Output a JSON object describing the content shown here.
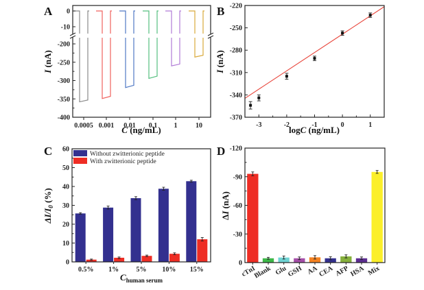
{
  "chart_data": [
    {
      "panel": "A",
      "type": "line",
      "xlabel": "C (ng/mL)",
      "ylabel": "I (nA)",
      "categories": [
        "0.0005",
        "0.001",
        "0.01",
        "0.1",
        "1",
        "10"
      ],
      "y_upper_ticks": [
        "0",
        "-10"
      ],
      "y_lower_ticks": [
        "-200",
        "-250",
        "-300",
        "-350",
        "-400"
      ],
      "y_break": [
        -15,
        -190
      ],
      "series": [
        {
          "name": "0.0005",
          "color": "#8a8a8a",
          "baseline": 0,
          "plateau_start": -358,
          "plateau_end": -353
        },
        {
          "name": "0.001",
          "color": "#f0625e",
          "baseline": 0,
          "plateau_start": -349,
          "plateau_end": -343
        },
        {
          "name": "0.01",
          "color": "#4f78c4",
          "baseline": 0,
          "plateau_start": -319,
          "plateau_end": -313
        },
        {
          "name": "0.1",
          "color": "#54bf7e",
          "baseline": 0,
          "plateau_start": -294,
          "plateau_end": -288
        },
        {
          "name": "1",
          "color": "#b07bd6",
          "baseline": 0,
          "plateau_start": -260,
          "plateau_end": -255
        },
        {
          "name": "10",
          "color": "#d9a93a",
          "baseline": 0,
          "plateau_start": -236,
          "plateau_end": -231
        }
      ]
    },
    {
      "panel": "B",
      "type": "scatter",
      "xlabel": "logC (ng/mL)",
      "ylabel": "I (nA)",
      "xlim": [
        -3.5,
        1.5
      ],
      "ylim": [
        -370,
        -220
      ],
      "x_ticks": [
        "-3",
        "-2",
        "-1",
        "0",
        "1"
      ],
      "y_ticks": [
        "-220",
        "-250",
        "-280",
        "-310",
        "-340",
        "-370"
      ],
      "points": [
        {
          "x": -3.3,
          "y": -354,
          "err": 5
        },
        {
          "x": -3,
          "y": -344,
          "err": 4
        },
        {
          "x": -2,
          "y": -315,
          "err": 4
        },
        {
          "x": -1,
          "y": -291,
          "err": 3
        },
        {
          "x": 0,
          "y": -257,
          "err": 3
        },
        {
          "x": 1,
          "y": -233,
          "err": 3
        }
      ],
      "fit_line": {
        "slope": 24.6,
        "intercept": -258.5,
        "color": "#e8443a"
      }
    },
    {
      "panel": "C",
      "type": "bar",
      "xlabel": "C",
      "xlabel_sub": "human serum",
      "ylabel": "ΔI/I",
      "ylabel_sub": "0",
      "ylabel_unit": " (%)",
      "ylim": [
        0,
        60
      ],
      "y_ticks": [
        "0",
        "10",
        "20",
        "30",
        "40",
        "50",
        "60"
      ],
      "categories": [
        "0.5%",
        "1%",
        "5%",
        "10%",
        "15%"
      ],
      "legend_position": "top-left",
      "series": [
        {
          "name": "Without zwitterionic peptide",
          "color": "#33308f",
          "values": [
            25.7,
            28.8,
            33.8,
            38.8,
            42.8
          ],
          "errors": [
            0.4,
            0.8,
            0.8,
            0.8,
            0.5
          ]
        },
        {
          "name": "With zwitterionic peptide",
          "color": "#ee2d24",
          "values": [
            1.2,
            2.2,
            3.2,
            4.3,
            12.0
          ],
          "errors": [
            0.3,
            0.4,
            0.4,
            0.5,
            0.9
          ]
        }
      ]
    },
    {
      "panel": "D",
      "type": "bar",
      "xlabel": "",
      "ylabel": "ΔI (nA)",
      "ylim": [
        0,
        -120
      ],
      "y_ticks": [
        "0",
        "-30",
        "-60",
        "-90",
        "-120"
      ],
      "categories": [
        "cTnI",
        "Blank",
        "Glu",
        "GSH",
        "AA",
        "CEA",
        "AFP",
        "HSA",
        "Mix"
      ],
      "values": [
        -93,
        -4.5,
        -5.3,
        -4.5,
        -5.5,
        -4.5,
        -6.5,
        -4.5,
        -95
      ],
      "errors": [
        2,
        1,
        1.6,
        1.4,
        1.8,
        1.6,
        1.6,
        1.4,
        1.5
      ],
      "colors": [
        "#ee2d24",
        "#3db848",
        "#6fd3d3",
        "#a54ea8",
        "#f58220",
        "#33308f",
        "#86b03c",
        "#5c2d91",
        "#fbef2a"
      ]
    }
  ],
  "labels": {
    "A": "A",
    "B": "B",
    "C": "C",
    "D": "D"
  }
}
